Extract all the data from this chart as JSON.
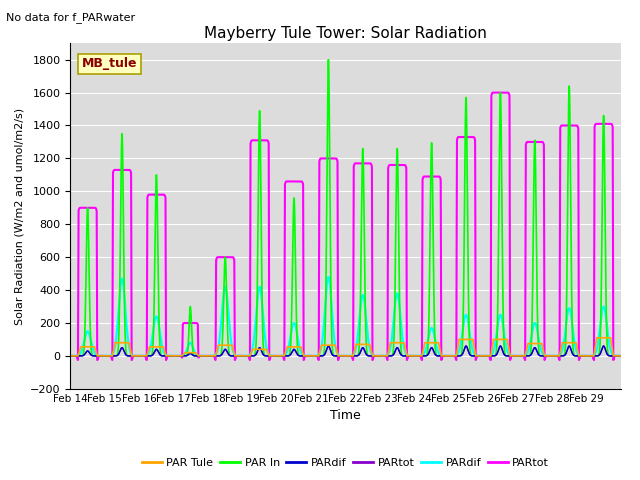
{
  "title": "Mayberry Tule Tower: Solar Radiation",
  "subtitle": "No data for f_PARwater",
  "xlabel": "Time",
  "ylabel": "Solar Radiation (W/m2 and umol/m2/s)",
  "xlim": [
    0,
    16
  ],
  "ylim": [
    -200,
    1900
  ],
  "yticks": [
    -200,
    0,
    200,
    400,
    600,
    800,
    1000,
    1200,
    1400,
    1600,
    1800
  ],
  "xtick_labels": [
    "Feb 14",
    "Feb 15",
    "Feb 16",
    "Feb 17",
    "Feb 18",
    "Feb 19",
    "Feb 20",
    "Feb 21",
    "Feb 22",
    "Feb 23",
    "Feb 24",
    "Feb 25",
    "Feb 26",
    "Feb 27",
    "Feb 28",
    "Feb 29"
  ],
  "bg_color": "#dcdcdc",
  "annotation_box": "MB_tule",
  "annotation_color": "#8b0000",
  "series": {
    "PAR_Tule": {
      "color": "#ffa500",
      "lw": 1.2,
      "label": "PAR Tule"
    },
    "PAR_In": {
      "color": "#00ff00",
      "lw": 1.2,
      "label": "PAR In"
    },
    "PARdif1": {
      "color": "#0000cd",
      "lw": 1.0,
      "label": "PARdif"
    },
    "PARtot1": {
      "color": "#8800cc",
      "lw": 1.0,
      "label": "PARtot"
    },
    "PARdif2": {
      "color": "#00ffff",
      "lw": 1.5,
      "label": "PARdif"
    },
    "PARtot2": {
      "color": "#ff00ff",
      "lw": 1.5,
      "label": "PARtot"
    }
  },
  "day_data": {
    "start": [
      0.22,
      0.22,
      0.22,
      0.25,
      0.22,
      0.22,
      0.22,
      0.22,
      0.22,
      0.22,
      0.22,
      0.22,
      0.22,
      0.22,
      0.22,
      0.22
    ],
    "end": [
      0.78,
      0.78,
      0.78,
      0.72,
      0.78,
      0.78,
      0.78,
      0.78,
      0.78,
      0.78,
      0.78,
      0.78,
      0.78,
      0.78,
      0.78,
      0.78
    ],
    "PAR_Tule_pk": [
      55,
      80,
      55,
      20,
      65,
      40,
      55,
      65,
      70,
      80,
      80,
      100,
      100,
      75,
      80,
      110
    ],
    "PAR_In_pk": [
      900,
      1350,
      1100,
      300,
      600,
      1490,
      960,
      1800,
      1260,
      1260,
      1295,
      1570,
      1600,
      1310,
      1640,
      1460
    ],
    "PARtot2_pk": [
      900,
      1130,
      980,
      200,
      600,
      1310,
      1060,
      1200,
      1170,
      1160,
      1090,
      1330,
      1600,
      1300,
      1400,
      1410
    ],
    "PARdif2_pk": [
      150,
      470,
      240,
      80,
      420,
      420,
      200,
      480,
      370,
      380,
      170,
      250,
      250,
      200,
      290,
      300
    ],
    "PARdif1_pk": [
      30,
      50,
      40,
      15,
      40,
      50,
      40,
      60,
      50,
      50,
      50,
      60,
      60,
      50,
      60,
      60
    ],
    "PARtot1_pk": [
      30,
      50,
      40,
      15,
      40,
      50,
      40,
      60,
      50,
      50,
      50,
      60,
      60,
      50,
      60,
      60
    ],
    "neg_spike_pk": [
      25,
      25,
      25,
      10,
      25,
      25,
      25,
      25,
      25,
      25,
      25,
      25,
      25,
      25,
      25,
      25
    ]
  }
}
